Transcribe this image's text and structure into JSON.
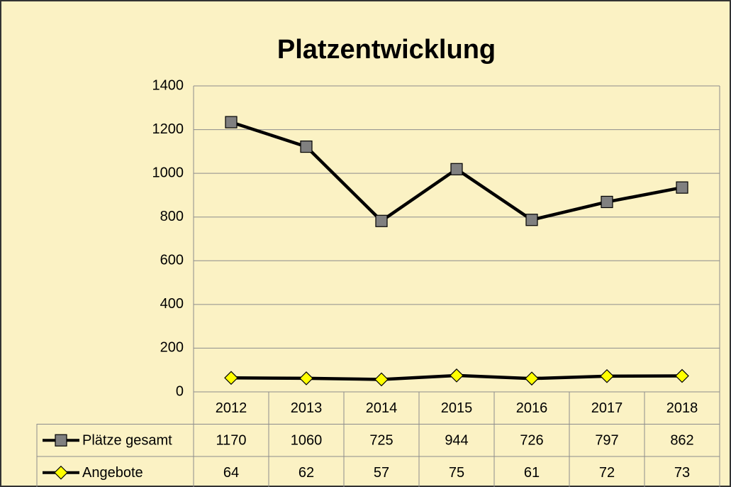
{
  "chart_data": {
    "type": "line",
    "stacked": true,
    "title": "Platzentwicklung",
    "categories": [
      "2012",
      "2013",
      "2014",
      "2015",
      "2016",
      "2017",
      "2018"
    ],
    "series": [
      {
        "name": "Plätze gesamt",
        "color": "#808080",
        "marker": "square",
        "values": [
          1170,
          1060,
          725,
          944,
          726,
          797,
          862
        ]
      },
      {
        "name": "Angebote",
        "color": "#ffff00",
        "marker": "diamond",
        "values": [
          64,
          62,
          57,
          75,
          61,
          72,
          73
        ]
      }
    ],
    "ylim": [
      0,
      1400
    ],
    "yticks": [
      0,
      200,
      400,
      600,
      800,
      1000,
      1200,
      1400
    ],
    "grid": true,
    "data_table": true
  }
}
